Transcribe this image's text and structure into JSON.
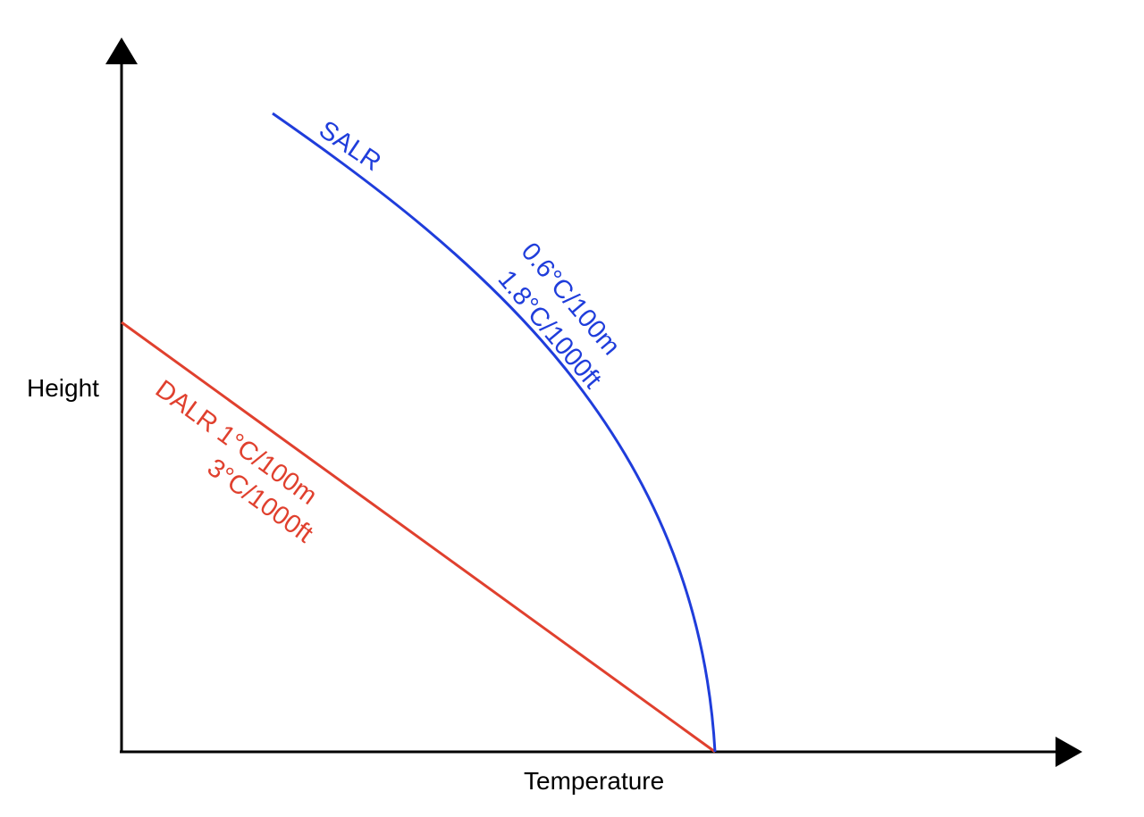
{
  "axes": {
    "x_label": "Temperature",
    "y_label": "Height"
  },
  "curves": {
    "salr": {
      "name": "SALR",
      "rate_metric": "0.6°C/100m",
      "rate_imperial": "1.8°C/1000ft",
      "color": "#1f3ddb"
    },
    "dalr": {
      "name_and_rate_metric": "DALR 1°C/100m",
      "rate_imperial": "3°C/1000ft",
      "color": "#e0402e"
    }
  },
  "colors": {
    "axis": "#000000"
  }
}
